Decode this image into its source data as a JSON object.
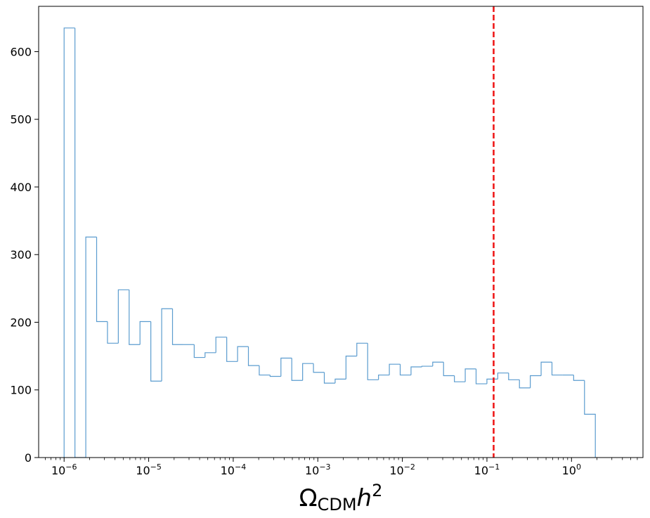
{
  "chart_data": {
    "type": "histogram",
    "title": "",
    "xlabel": {
      "base": "Ω",
      "sub": "CDM",
      "var": "h",
      "sup": "2"
    },
    "ylabel": "",
    "xscale": "log",
    "xlim": [
      5e-07,
      7
    ],
    "ylim": [
      0,
      667
    ],
    "xticks": [
      {
        "exp": "−6",
        "value": 1e-06
      },
      {
        "exp": "−5",
        "value": 1e-05
      },
      {
        "exp": "−4",
        "value": 0.0001
      },
      {
        "exp": "−3",
        "value": 0.001
      },
      {
        "exp": "−2",
        "value": 0.01
      },
      {
        "exp": "−1",
        "value": 0.1
      },
      {
        "exp": "0",
        "value": 1
      }
    ],
    "xtick_base": "10",
    "yticks": [
      {
        "label": "0",
        "value": 0
      },
      {
        "label": "100",
        "value": 100
      },
      {
        "label": "200",
        "value": 200
      },
      {
        "label": "300",
        "value": 300
      },
      {
        "label": "400",
        "value": 400
      },
      {
        "label": "500",
        "value": 500
      },
      {
        "label": "600",
        "value": 600
      }
    ],
    "bins": {
      "log10_start": -6.0,
      "log10_step": 0.1282,
      "counts": [
        635,
        0,
        326,
        201,
        169,
        248,
        167,
        201,
        113,
        220,
        167,
        167,
        148,
        155,
        178,
        142,
        164,
        136,
        122,
        120,
        147,
        114,
        139,
        126,
        110,
        116,
        150,
        169,
        115,
        122,
        138,
        122,
        134,
        135,
        141,
        121,
        112,
        131,
        109,
        116,
        125,
        115,
        103,
        121,
        141,
        122,
        122,
        114,
        64
      ]
    },
    "vline": {
      "value": 0.12,
      "style": "dashed"
    },
    "grid": false,
    "legend": "none",
    "colors": {
      "histogram": "#5b9ccf",
      "vline": "#ee1111",
      "axes": "#000000"
    }
  }
}
